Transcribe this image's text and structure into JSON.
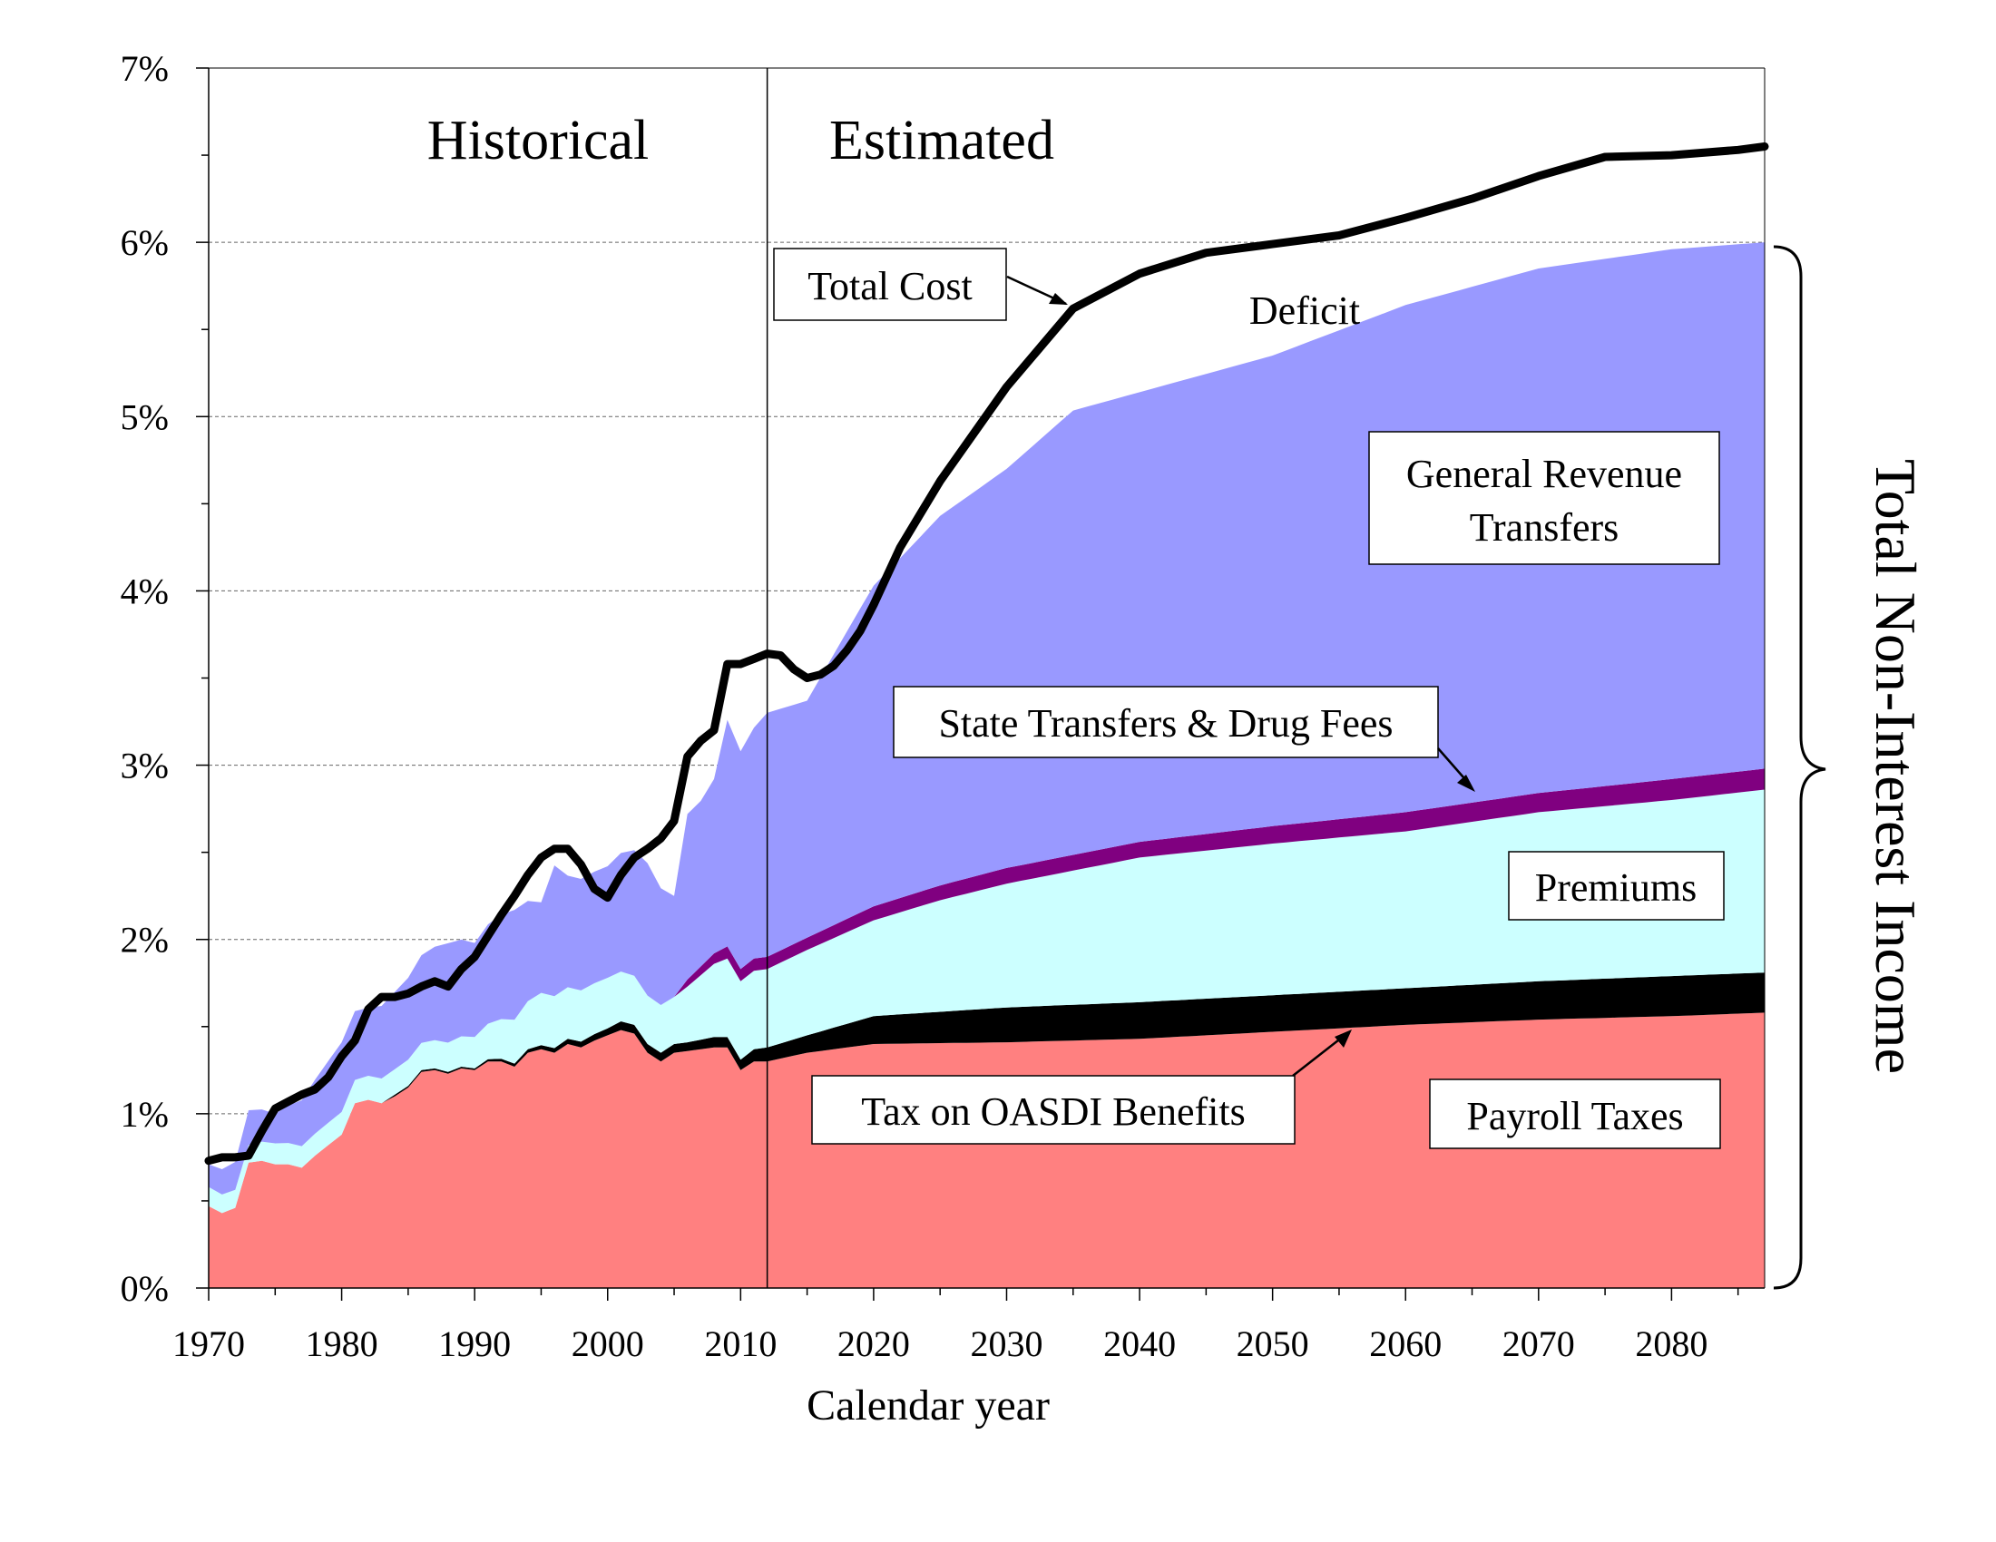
{
  "colors": {
    "payroll": "#ff8080",
    "oasdi": "#000000",
    "premiums": "#ccffff",
    "state": "#800080",
    "general": "#9999ff",
    "total_cost": "#000000",
    "background": "#ffffff"
  },
  "chart_data": {
    "type": "area",
    "stacked": true,
    "xlabel": "Calendar year",
    "ylabel": "",
    "xlim": [
      1970,
      2087
    ],
    "ylim": [
      0,
      7
    ],
    "grid": "horizontal dashed at 1% steps",
    "x_ticks": [
      1970,
      1980,
      1990,
      2000,
      2010,
      2020,
      2030,
      2040,
      2050,
      2060,
      2070,
      2080
    ],
    "x_tick_labels": [
      "1970",
      "1980",
      "1990",
      "2000",
      "2010",
      "2020",
      "2030",
      "2040",
      "2050",
      "2060",
      "2070",
      "2080"
    ],
    "y_ticks": [
      0,
      1,
      2,
      3,
      4,
      5,
      6,
      7
    ],
    "y_tick_labels": [
      "0%",
      "1%",
      "2%",
      "3%",
      "4%",
      "5%",
      "6%",
      "7%"
    ],
    "divider_year": 2012,
    "period_labels": {
      "historical": "Historical",
      "estimated": "Estimated"
    },
    "series": [
      {
        "name": "Payroll Taxes",
        "color_key": "payroll",
        "x": [
          1970,
          1971,
          1972,
          1973,
          1974,
          1975,
          1976,
          1977,
          1978,
          1979,
          1980,
          1981,
          1982,
          1983,
          1984,
          1985,
          1986,
          1987,
          1988,
          1989,
          1990,
          1991,
          1992,
          1993,
          1994,
          1995,
          1996,
          1997,
          1998,
          1999,
          2000,
          2001,
          2002,
          2003,
          2004,
          2005,
          2006,
          2007,
          2008,
          2009,
          2010,
          2011,
          2012,
          2015,
          2020,
          2030,
          2040,
          2050,
          2060,
          2070,
          2080,
          2087
        ],
        "values": [
          0.47,
          0.43,
          0.46,
          0.72,
          0.73,
          0.71,
          0.71,
          0.69,
          0.76,
          0.82,
          0.88,
          1.06,
          1.08,
          1.06,
          1.1,
          1.15,
          1.24,
          1.25,
          1.23,
          1.26,
          1.25,
          1.3,
          1.3,
          1.27,
          1.35,
          1.37,
          1.35,
          1.4,
          1.38,
          1.42,
          1.45,
          1.48,
          1.46,
          1.35,
          1.3,
          1.35,
          1.36,
          1.37,
          1.38,
          1.38,
          1.25,
          1.3,
          1.3,
          1.35,
          1.4,
          1.41,
          1.43,
          1.47,
          1.51,
          1.54,
          1.56,
          1.58
        ]
      },
      {
        "name": "Tax on OASDI Benefits",
        "color_key": "oasdi",
        "x": [
          1970,
          1983,
          1984,
          1990,
          1994,
          2000,
          2001,
          2002,
          2003,
          2004,
          2006,
          2008,
          2009,
          2010,
          2012,
          2015,
          2020,
          2030,
          2040,
          2050,
          2060,
          2070,
          2080,
          2087
        ],
        "values": [
          0,
          0,
          0.01,
          0.01,
          0.02,
          0.04,
          0.05,
          0.05,
          0.05,
          0.05,
          0.05,
          0.06,
          0.06,
          0.06,
          0.08,
          0.1,
          0.16,
          0.2,
          0.21,
          0.21,
          0.21,
          0.22,
          0.23,
          0.23
        ]
      },
      {
        "name": "Premiums",
        "color_key": "premiums",
        "x": [
          1970,
          1973,
          1975,
          1980,
          1985,
          1990,
          1995,
          2000,
          2005,
          2008,
          2009,
          2010,
          2012,
          2015,
          2020,
          2025,
          2030,
          2040,
          2050,
          2060,
          2070,
          2080,
          2087
        ],
        "values": [
          0.11,
          0.1,
          0.12,
          0.13,
          0.15,
          0.18,
          0.3,
          0.29,
          0.27,
          0.42,
          0.45,
          0.45,
          0.45,
          0.49,
          0.55,
          0.64,
          0.71,
          0.83,
          0.87,
          0.9,
          0.97,
          1.01,
          1.05
        ]
      },
      {
        "name": "State Transfers & Drug Fees",
        "color_key": "state",
        "x": [
          1970,
          2005,
          2006,
          2007,
          2008,
          2009,
          2010,
          2012,
          2015,
          2020,
          2030,
          2040,
          2050,
          2060,
          2070,
          2080,
          2087
        ],
        "values": [
          0,
          0,
          0.04,
          0.05,
          0.06,
          0.07,
          0.07,
          0.07,
          0.07,
          0.08,
          0.09,
          0.09,
          0.1,
          0.11,
          0.11,
          0.12,
          0.12
        ]
      },
      {
        "name": "General Revenue Transfers",
        "color_key": "general",
        "x": [
          1970,
          1972,
          1973,
          1975,
          1978,
          1980,
          1982,
          1985,
          1988,
          1990,
          1993,
          1995,
          1996,
          1997,
          2000,
          2003,
          2005,
          2006,
          2007,
          2008,
          2009,
          2010,
          2012,
          2015,
          2018,
          2020,
          2022,
          2025,
          2030,
          2035,
          2040,
          2050,
          2060,
          2070,
          2080,
          2087
        ],
        "values": [
          0.13,
          0.16,
          0.2,
          0.17,
          0.31,
          0.4,
          0.39,
          0.47,
          0.57,
          0.54,
          0.63,
          0.52,
          0.75,
          0.64,
          0.64,
          0.76,
          0.58,
          0.95,
          0.95,
          1.0,
          1.3,
          1.25,
          1.4,
          1.36,
          1.65,
          1.84,
          1.95,
          2.12,
          2.29,
          2.55,
          2.58,
          2.7,
          2.91,
          3.01,
          3.04,
          3.02
        ]
      }
    ],
    "total_cost": {
      "name": "Total Cost",
      "x": [
        1970,
        1971,
        1972,
        1973,
        1974,
        1975,
        1976,
        1977,
        1978,
        1979,
        1980,
        1981,
        1982,
        1983,
        1984,
        1985,
        1986,
        1987,
        1988,
        1989,
        1990,
        1991,
        1992,
        1993,
        1994,
        1995,
        1996,
        1997,
        1998,
        1999,
        2000,
        2001,
        2002,
        2003,
        2004,
        2005,
        2006,
        2007,
        2008,
        2009,
        2010,
        2011,
        2012,
        2013,
        2014,
        2015,
        2016,
        2017,
        2018,
        2019,
        2020,
        2022,
        2025,
        2030,
        2035,
        2040,
        2045,
        2050,
        2055,
        2060,
        2065,
        2070,
        2075,
        2080,
        2085,
        2087
      ],
      "values": [
        0.73,
        0.75,
        0.75,
        0.76,
        0.9,
        1.03,
        1.07,
        1.11,
        1.14,
        1.21,
        1.33,
        1.42,
        1.6,
        1.67,
        1.67,
        1.69,
        1.73,
        1.76,
        1.73,
        1.83,
        1.9,
        2.02,
        2.14,
        2.25,
        2.37,
        2.47,
        2.52,
        2.52,
        2.43,
        2.29,
        2.24,
        2.37,
        2.47,
        2.52,
        2.58,
        2.68,
        3.05,
        3.14,
        3.2,
        3.58,
        3.58,
        3.61,
        3.64,
        3.63,
        3.55,
        3.5,
        3.52,
        3.57,
        3.66,
        3.77,
        3.92,
        4.25,
        4.63,
        5.17,
        5.62,
        5.82,
        5.94,
        5.99,
        6.04,
        6.14,
        6.25,
        6.38,
        6.49,
        6.5,
        6.53,
        6.55
      ]
    },
    "annotations": {
      "total_cost": "Total Cost",
      "deficit": "Deficit",
      "general_revenue_line1": "General Revenue",
      "general_revenue_line2": "Transfers",
      "state_transfers": "State Transfers & Drug Fees",
      "premiums": "Premiums",
      "oasdi": "Tax on OASDI Benefits",
      "payroll": "Payroll Taxes",
      "brace": "Total Non-Interest Income"
    }
  }
}
